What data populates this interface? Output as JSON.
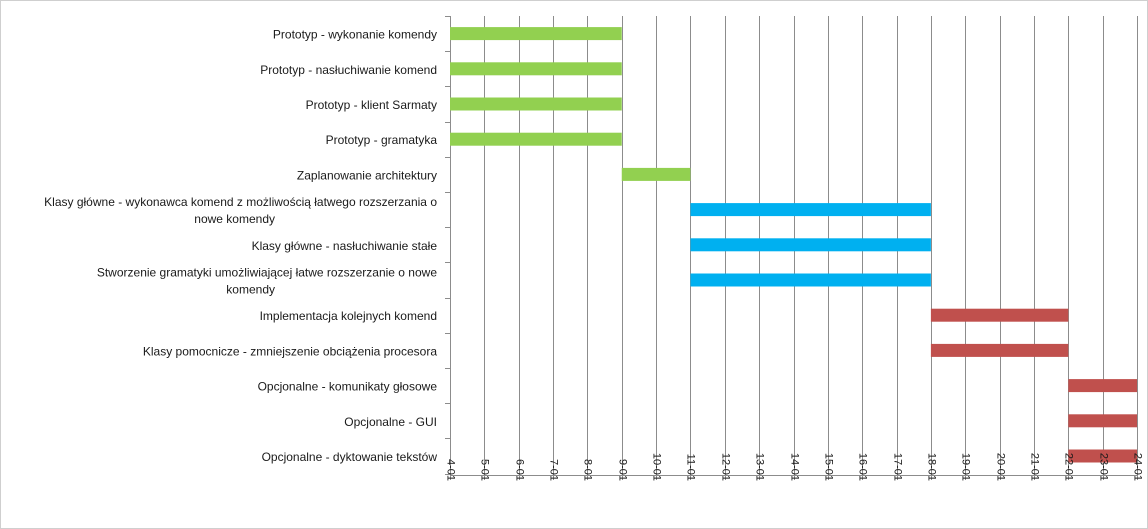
{
  "chart_data": {
    "type": "bar",
    "orientation": "horizontal",
    "title": "",
    "xlabel": "",
    "ylabel": "",
    "legend": "none",
    "grid": true,
    "xlim": [
      4,
      24
    ],
    "ticks": [
      "4-01",
      "5-01",
      "6-01",
      "7-01",
      "8-01",
      "9-01",
      "10-01",
      "11-01",
      "12-01",
      "13-01",
      "14-01",
      "15-01",
      "16-01",
      "17-01",
      "18-01",
      "19-01",
      "20-01",
      "21-01",
      "22-01",
      "23-01",
      "24-01"
    ],
    "colors": {
      "green": "#92d050",
      "blue": "#00b0f0",
      "red": "#c0504d"
    },
    "tasks": [
      {
        "label_lines": [
          "Prototyp - wykonanie komendy"
        ],
        "start": 4,
        "end": 9,
        "color": "green"
      },
      {
        "label_lines": [
          "Prototyp - nasłuchiwanie komend"
        ],
        "start": 4,
        "end": 9,
        "color": "green"
      },
      {
        "label_lines": [
          "Prototyp - klient Sarmaty"
        ],
        "start": 4,
        "end": 9,
        "color": "green"
      },
      {
        "label_lines": [
          "Prototyp - gramatyka"
        ],
        "start": 4,
        "end": 9,
        "color": "green"
      },
      {
        "label_lines": [
          "Zaplanowanie architektury"
        ],
        "start": 9,
        "end": 11,
        "color": "green"
      },
      {
        "label_lines": [
          "Klasy główne - wykonawca komend z możliwością łatwego rozszerzania o",
          "nowe komendy"
        ],
        "start": 11,
        "end": 18,
        "color": "blue"
      },
      {
        "label_lines": [
          "Klasy główne - nasłuchiwanie stałe"
        ],
        "start": 11,
        "end": 18,
        "color": "blue"
      },
      {
        "label_lines": [
          "Stworzenie gramatyki umożliwiającej łatwe rozszerzanie o nowe",
          "komendy"
        ],
        "start": 11,
        "end": 18,
        "color": "blue"
      },
      {
        "label_lines": [
          "Implementacja kolejnych komend"
        ],
        "start": 18,
        "end": 22,
        "color": "red"
      },
      {
        "label_lines": [
          "Klasy pomocnicze - zmniejszenie obciążenia procesora"
        ],
        "start": 18,
        "end": 22,
        "color": "red"
      },
      {
        "label_lines": [
          "Opcjonalne - komunikaty głosowe"
        ],
        "start": 22,
        "end": 24,
        "color": "red"
      },
      {
        "label_lines": [
          "Opcjonalne - GUI"
        ],
        "start": 22,
        "end": 24,
        "color": "red"
      },
      {
        "label_lines": [
          "Opcjonalne - dyktowanie tekstów"
        ],
        "start": 22,
        "end": 24,
        "color": "red"
      }
    ]
  }
}
